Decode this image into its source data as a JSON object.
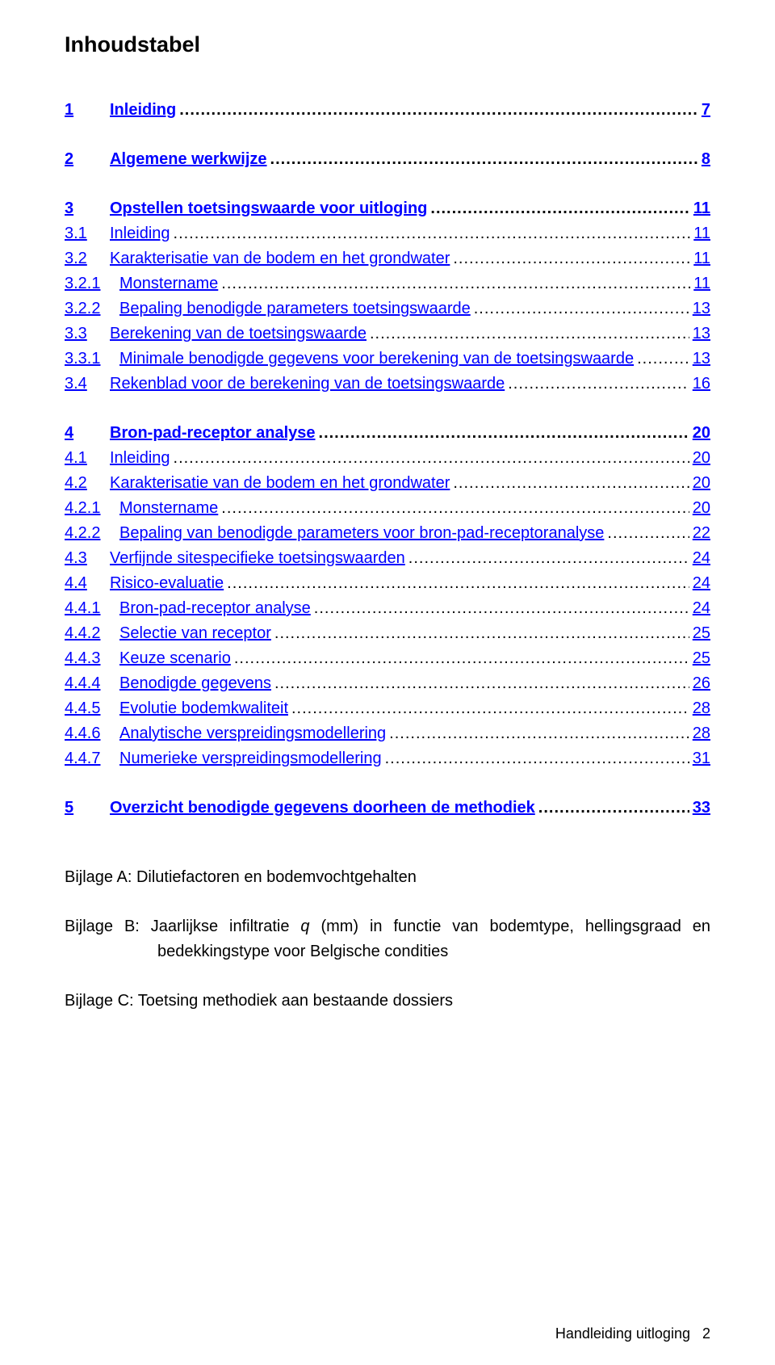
{
  "title": "Inhoudstabel",
  "toc": [
    {
      "num": "1",
      "label": "Inleiding",
      "page": "7",
      "bold": true,
      "link": true,
      "indent": 0,
      "gapAfter": true
    },
    {
      "num": "2",
      "label": "Algemene werkwijze",
      "page": "8",
      "bold": true,
      "link": true,
      "indent": 0,
      "gapAfter": true
    },
    {
      "num": "3",
      "label": "Opstellen toetsingswaarde voor uitloging",
      "page": "11",
      "bold": true,
      "link": true,
      "indent": 0
    },
    {
      "num": "3.1",
      "label": "Inleiding",
      "page": "11",
      "bold": false,
      "link": true,
      "indent": 1
    },
    {
      "num": "3.2",
      "label": "Karakterisatie van de bodem en het grondwater",
      "page": "11",
      "bold": false,
      "link": true,
      "indent": 1
    },
    {
      "num": "3.2.1",
      "label": "Monstername",
      "page": "11",
      "bold": false,
      "link": true,
      "indent": 2
    },
    {
      "num": "3.2.2",
      "label": "Bepaling benodigde parameters toetsingswaarde",
      "page": "13",
      "bold": false,
      "link": true,
      "indent": 2
    },
    {
      "num": "3.3",
      "label": "Berekening van de toetsingswaarde",
      "page": "13",
      "bold": false,
      "link": true,
      "indent": 1
    },
    {
      "num": "3.3.1",
      "label": "Minimale benodigde gegevens voor berekening van de toetsingswaarde",
      "page": "13",
      "bold": false,
      "link": true,
      "indent": 2
    },
    {
      "num": "3.4",
      "label": "Rekenblad voor de berekening van de toetsingswaarde",
      "page": "16",
      "bold": false,
      "link": true,
      "indent": 1,
      "gapAfter": true
    },
    {
      "num": "4",
      "label": "Bron-pad-receptor analyse",
      "page": "20",
      "bold": true,
      "link": true,
      "indent": 0
    },
    {
      "num": "4.1",
      "label": "Inleiding",
      "page": "20",
      "bold": false,
      "link": true,
      "indent": 1
    },
    {
      "num": "4.2",
      "label": "Karakterisatie van de bodem en het grondwater",
      "page": "20",
      "bold": false,
      "link": true,
      "indent": 1
    },
    {
      "num": "4.2.1",
      "label": "Monstername",
      "page": "20",
      "bold": false,
      "link": true,
      "indent": 2
    },
    {
      "num": "4.2.2",
      "label": "Bepaling van benodigde parameters voor bron-pad-receptoranalyse",
      "page": "22",
      "bold": false,
      "link": true,
      "indent": 2
    },
    {
      "num": "4.3",
      "label": "Verfijnde sitespecifieke toetsingswaarden",
      "page": "24",
      "bold": false,
      "link": true,
      "indent": 1
    },
    {
      "num": "4.4",
      "label": "Risico-evaluatie",
      "page": "24",
      "bold": false,
      "link": true,
      "indent": 1
    },
    {
      "num": "4.4.1",
      "label": "Bron-pad-receptor analyse",
      "page": "24",
      "bold": false,
      "link": true,
      "indent": 2
    },
    {
      "num": "4.4.2",
      "label": "Selectie van receptor",
      "page": "25",
      "bold": false,
      "link": true,
      "indent": 2
    },
    {
      "num": "4.4.3",
      "label": "Keuze scenario",
      "page": "25",
      "bold": false,
      "link": true,
      "indent": 2
    },
    {
      "num": "4.4.4",
      "label": "Benodigde gegevens",
      "page": "26",
      "bold": false,
      "link": true,
      "indent": 2
    },
    {
      "num": "4.4.5",
      "label": "Evolutie bodemkwaliteit",
      "page": "28",
      "bold": false,
      "link": true,
      "indent": 2
    },
    {
      "num": "4.4.6",
      "label": "Analytische verspreidingsmodellering",
      "page": "28",
      "bold": false,
      "link": true,
      "indent": 2
    },
    {
      "num": "4.4.7",
      "label": "Numerieke verspreidingsmodellering",
      "page": "31",
      "bold": false,
      "link": true,
      "indent": 2,
      "gapAfter": true
    },
    {
      "num": "5",
      "label": "Overzicht benodigde gegevens doorheen de methodiek",
      "page": "33",
      "bold": true,
      "link": true,
      "indent": 0
    }
  ],
  "appendixA": "Bijlage A: Dilutiefactoren en bodemvochtgehalten",
  "appendixB_pre": "Bijlage B: Jaarlijkse infiltratie ",
  "appendixB_italic": "q",
  "appendixB_post": " (mm) in functie van bodemtype, hellingsgraad en bedekkingstype voor Belgische condities",
  "appendixC": "Bijlage C:  Toetsing methodiek aan bestaande dossiers",
  "footer_text": "Handleiding uitloging",
  "footer_page": "2",
  "colors": {
    "link": "#0000ff",
    "text": "#000000",
    "background": "#ffffff"
  }
}
